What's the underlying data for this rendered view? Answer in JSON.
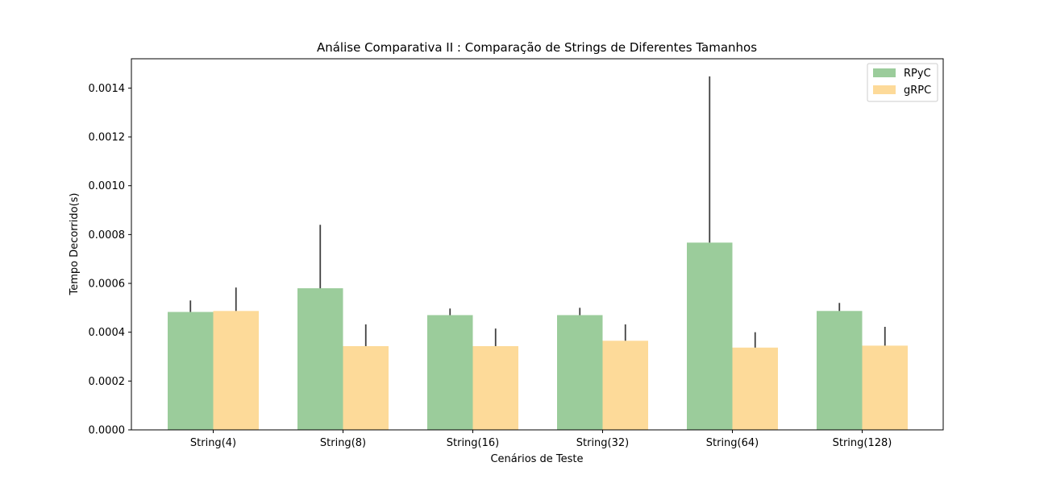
{
  "chart_data": {
    "type": "bar",
    "title": "Análise Comparativa II : Comparação de Strings de Diferentes Tamanhos",
    "xlabel": "Cenários de Teste",
    "ylabel": "Tempo Decorrido(s)",
    "categories": [
      "String(4)",
      "String(8)",
      "String(16)",
      "String(32)",
      "String(64)",
      "String(128)"
    ],
    "ylim": [
      0,
      0.00152
    ],
    "yticks": [
      "0.0000",
      "0.0002",
      "0.0004",
      "0.0006",
      "0.0008",
      "0.0010",
      "0.0012",
      "0.0014"
    ],
    "ytick_values": [
      0,
      0.0002,
      0.0004,
      0.0006,
      0.0008,
      0.001,
      0.0012,
      0.0014
    ],
    "legend_position": "top-right",
    "grid": false,
    "series": [
      {
        "name": "RPyC",
        "color": "#9bcc9b",
        "values": [
          0.000483,
          0.00058,
          0.00047,
          0.00047,
          0.000767,
          0.000487
        ],
        "error_upper": [
          0.00053,
          0.00084,
          0.000497,
          0.0005,
          0.001448,
          0.00052
        ]
      },
      {
        "name": "gRPC",
        "color": "#fdda99",
        "values": [
          0.000487,
          0.000343,
          0.000343,
          0.000365,
          0.000337,
          0.000345
        ],
        "error_upper": [
          0.000583,
          0.000432,
          0.000415,
          0.000432,
          0.0004,
          0.000422
        ]
      }
    ],
    "error_bar_color": "#404040"
  }
}
